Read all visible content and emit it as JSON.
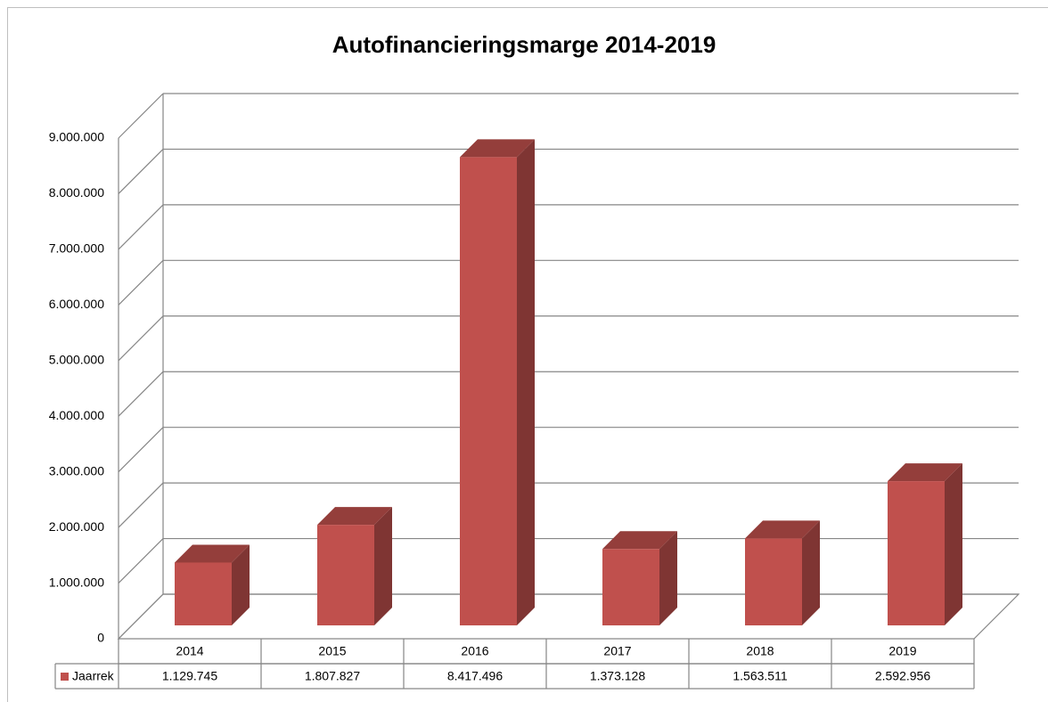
{
  "chart_data": {
    "type": "bar3d",
    "title": "Autofinancieringsmarge 2014-2019",
    "categories": [
      "2014",
      "2015",
      "2016",
      "2017",
      "2018",
      "2019"
    ],
    "series": [
      {
        "name": "Jaarrek",
        "color": "#c0504d",
        "values": [
          1129745,
          1807827,
          8417496,
          1373128,
          1563511,
          2592956
        ],
        "value_labels": [
          "1.129.745",
          "1.807.827",
          "8.417.496",
          "1.373.128",
          "1.563.511",
          "2.592.956"
        ]
      }
    ],
    "ylim": [
      0,
      9000000
    ],
    "yticks": [
      {
        "value": 0,
        "label": "0"
      },
      {
        "value": 1000000,
        "label": "1.000.000"
      },
      {
        "value": 2000000,
        "label": "2.000.000"
      },
      {
        "value": 3000000,
        "label": "3.000.000"
      },
      {
        "value": 4000000,
        "label": "4.000.000"
      },
      {
        "value": 5000000,
        "label": "5.000.000"
      },
      {
        "value": 6000000,
        "label": "6.000.000"
      },
      {
        "value": 7000000,
        "label": "7.000.000"
      },
      {
        "value": 8000000,
        "label": "8.000.000"
      },
      {
        "value": 9000000,
        "label": "9.000.000"
      }
    ],
    "grid": true
  }
}
